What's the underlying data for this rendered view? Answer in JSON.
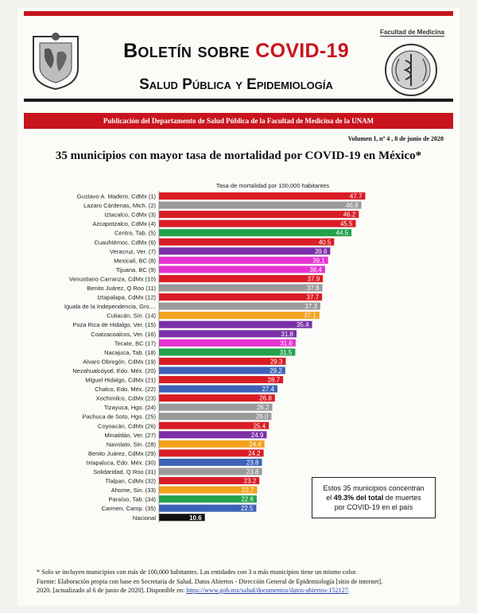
{
  "header": {
    "title_prefix": "Boletín sobre ",
    "title_highlight": "COVID-19",
    "subtitle": "Salud Pública y Epidemiología",
    "faculty_label": "Facultad de Medicina",
    "publication": "Publicación del Departamento de Salud Pública de la Facultad de Medicina de la UNAM",
    "volume": "Volumen I, nº 4 ,  8 de junio de 2020",
    "brand_red": "#c8141c"
  },
  "chart_data": {
    "type": "bar",
    "orientation": "horizontal",
    "title": "35 municipios con mayor tasa de mortalidad por COVID-19 en México*",
    "xlabel": "Tasa de mortalidad por 100,000 habitantes",
    "xlim": [
      0,
      50
    ],
    "grid": false,
    "categories": [
      "Gustavo A. Madero, CdMx (1)",
      "Lazaro Cárdenas, Mich. (2)",
      "Iztacalco, CdMx (3)",
      "Azcapotzalco, CdMx (4)",
      "Centro, Tab. (5)",
      "Cuauhtémoc, CdMx (6)",
      "Veracruz, Ver. (7)",
      "Mexicali, BC (8)",
      "Tijuana, BC (9)",
      "Venustiano Carranza, CdMx (10)",
      "Benito Juárez, Q Roo (11)",
      "Iztapalapa, CdMx (12)",
      "Iguala de la Independencia, Gro....",
      "Culiacán, Sin. (14)",
      "Poza Rica de Hidalgo, Ver. (15)",
      "Coatzacoalcos, Ver. (16)",
      "Tecate, BC (17)",
      "Nacajuca, Tab. (18)",
      "Alvaro Obregón, CdMx (19)",
      "Nezahualcóyotl, Edo. Méx. (20)",
      "Miguel Hidalgo, CdMx (21)",
      "Chalco, Edo. Méx. (22)",
      "Xochimilco, CdMx (23)",
      "Tizayuca, Hgo. (24)",
      "Pachuca de Soto, Hgo. (25)",
      "Coyoacán, CdMx (26)",
      "Minatitlán, Ver. (27)",
      "Navolato, Sin. (28)",
      "Benito Juárez, CdMx (29)",
      "Ixtapaluca, Edo. Méx. (30)",
      "Solidaridad, Q Roo (31)",
      "Tlalpan, CdMx (32)",
      "Ahome, Sin. (33)",
      "Paraíso, Tab. (34)",
      "Carmen, Camp. (35)",
      "Nacional"
    ],
    "values": [
      47.7,
      46.8,
      46.2,
      45.5,
      44.5,
      40.5,
      39.6,
      39.1,
      38.4,
      37.9,
      37.8,
      37.7,
      37.3,
      37.1,
      35.4,
      31.8,
      31.6,
      31.5,
      29.3,
      29.2,
      28.7,
      27.4,
      26.8,
      26.2,
      26.0,
      25.4,
      24.9,
      24.4,
      24.2,
      23.8,
      23.8,
      23.2,
      22.7,
      22.6,
      22.5,
      10.6
    ],
    "value_labels": [
      "47.7",
      "46.8",
      "46.2",
      "45.5",
      "44.5",
      "40.5",
      "39.6",
      "39.1",
      "38.4",
      "37.9",
      "37.8",
      "37.7",
      "37.3",
      "37.1",
      "35.4",
      "31.8",
      "31.6",
      "31.5",
      "29.3",
      "29.2",
      "28.7",
      "27.4",
      "26.8",
      "26.2",
      "26.0",
      "25.4",
      "24.9",
      "24.4",
      "24.2",
      "23.8",
      "23.8",
      "23.2",
      "22.7",
      "22.6",
      "22.5",
      "10.6"
    ],
    "colors": [
      "#d91c24",
      "#9a9a9a",
      "#d91c24",
      "#d91c24",
      "#23a24a",
      "#d91c24",
      "#7b2fa8",
      "#e633d2",
      "#e633d2",
      "#d91c24",
      "#9a9a9a",
      "#d91c24",
      "#9a9a9a",
      "#f2a21c",
      "#7b2fa8",
      "#7b2fa8",
      "#e633d2",
      "#23a24a",
      "#d91c24",
      "#3e62b8",
      "#d91c24",
      "#3e62b8",
      "#d91c24",
      "#9a9a9a",
      "#9a9a9a",
      "#d91c24",
      "#7b2fa8",
      "#f2a21c",
      "#d91c24",
      "#3e62b8",
      "#9a9a9a",
      "#d91c24",
      "#f2a21c",
      "#23a24a",
      "#3e62b8",
      "#111111"
    ]
  },
  "callout": {
    "line1": "Estos 35 municipios concentran",
    "line2_prefix": "el ",
    "line2_bold": "49.3% del total",
    "line2_suffix": " de muertes",
    "line3": "por COVID-19 en el país"
  },
  "footnote": {
    "line1": "* Solo se incluyen municipios con más de 100,000 habitantes. Las entidades con  3 o más municipios tiene un mismo color.",
    "line2": "Fuente:  Elaboración propia con base en Secretaría de Salud. Datos Abiertos - Dirección General de Epidemiología [sitio de internet].",
    "line3_prefix": "2020. [actualizado al 6 de junio de  2020]. Disponible en: ",
    "url": "https://www.gob.mx/salud/documentos/datos-abiertos-152127",
    "line3_suffix": "."
  }
}
